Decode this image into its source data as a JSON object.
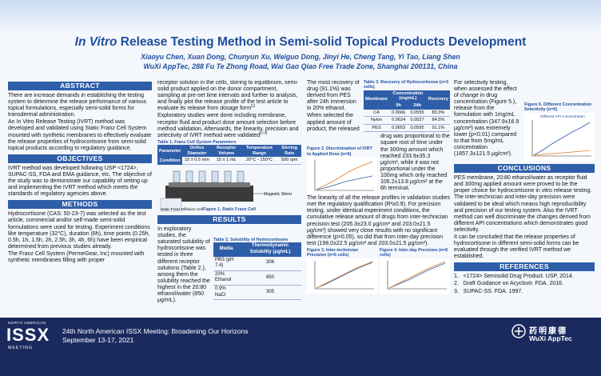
{
  "header": {
    "title_italic": "In Vitro",
    "title": "Release Testing Method in Semi-solid Topical Products Development",
    "authors": "Xiaoyu Chen, Xuan Dong, Chunyun Xu, Weiguo Dong, Jinyi He, Cheng Tang, Yi Tao, Liang Shen",
    "affiliation": "WuXi AppTec, 288 Fu Te Zhong Road, Wai Gao Qiao Free Trade Zone, Shanghai 200131, China"
  },
  "abstract": {
    "heading": "ABSTRACT",
    "paragraphs": [
      "There are increase demands in establishing the testing system to determine the release performance of various topical formulations, especially semi-solid forms for transdermal administration.",
      "An In Vitro Release Testing (IVRT) method was developed and validated using Static Franz Cell System mounted with synthetic membranes to effectively evaluate the release properties of hydrocortisone from semi-solid topical products according to regulatory guidance."
    ]
  },
  "objectives": {
    "heading": "OBJECTIVES",
    "paragraphs": [
      "IVRT method was developed following USP <1724>, SUPAC-SS, FDA and EMA guidance, etc. The objective of the study was to demonstrate our capability of setting up and implementing the IVRT method which meets the standards of regulatory agencies above."
    ]
  },
  "methods": {
    "heading": "METHODS",
    "paragraphs": [
      {
        "text": "Hydrocortisone (CAS: 50-23-7) was selected as the test article, commercial and/or self-made semi-solid formulations were used for testing. Experiment conditions like temperature (32°C), duration (6h), time points (0.25h, 0.5h, 1h, 1.5h, 2h, 2.5h, 3h, 4h, 6h) have been empirical determined from previous studies already."
      },
      {
        "parts": [
          "The Franz Cell System (PermeGear, Inc) mounted with synthetic membranes filling with proper",
          "receptor solution in the cells, stirring to equilibrium, semi-solid product applied on the donor compartment, sampling at pre-set time intervals and further to analysis, and finally plot the release profile of the test article to evaluate its release from dosage form"
        ],
        "cite": "[1]"
      },
      {
        "text": "Exploratory studies were done including membrane, receptor fluid and product dose amount selection before method validation. Afterwards, the linearity, precision and selectivity of IVRT method were validated",
        "cite": "[2-3]"
      }
    ]
  },
  "table1": {
    "caption": "Table 1. Franz Cell System Parameters",
    "headers": [
      "Parameter",
      "Orifice Diameter",
      "Receptor Volume",
      "Temperature Range",
      "Stirring Rate"
    ],
    "rows": [
      [
        "Condition",
        "15 ± 0.5 mm",
        "15 ± 1 mL",
        "20°C - 150°C",
        "500 rpm"
      ]
    ]
  },
  "figure1": {
    "labels": [
      "Magnetic Stirrer",
      "Static Franz Diffusion Cell"
    ],
    "caption": "Figure 1. Static Franz Cell"
  },
  "results": {
    "heading": "RESULTS",
    "paragraphs": [
      "In exploratory studies, the saturated solubility of hydrocortisone was tested in three different receptor solutions (Table 2.), among them the solubility reached the highest in the 20:80 ethanol/water (850 μg/mL).",
      "The most recovery of drug (91.1%) was derived from PES after 24h immersion in 20% ethanol.",
      "When selected the applied amount of product, the released drug was proportional to the square root of time under the 300mg amount which reached 233.9±35.3 μg/cm², while it was not proportional under the 100mg which only reached 106.2±13.8 μg/cm² at the 6h terminal.",
      "The linearity of all the release profiles in validation studies met the regulatory qualification (R²≥0.9). For precision testing, under identical experiment conditions, the cumulative release amount of drugs from inter-technician precision test (205.3±23.0 μg/cm² and 203.0±21.5 μg/cm²) showed very close results with no significant difference (p>0.05), so did that from inter-day precision test (198.0±22.5 μg/cm² and 203.0±21.5 μg/cm²).",
      "For selectivity testing, when assessed the effect of change in drug concentration (Figure 5.), release from the formulation with 1mg/mL concentration (347.9±16.9 μg/cm²) was extremely lower (p<0.01) compared to that from 5mg/mL concentration (1857.3±121.5 μg/cm²)."
    ]
  },
  "table2": {
    "caption": "Table 2. Solubility of Hydrocortisone",
    "headers": [
      "Media",
      "Thermodynamic Solubility (μg/mL)"
    ],
    "rows": [
      [
        "PBS (pH 7.4)",
        "306"
      ],
      [
        "20% Ethanol",
        "850"
      ],
      [
        "0.9% NaCl",
        "305"
      ]
    ]
  },
  "table3": {
    "caption": "Table 3. Recovery of Hydrocortisone (n=3 cells)",
    "headers": [
      "Membrane",
      "Concentration (mg/mL)",
      "Recovery"
    ],
    "subheaders": [
      "0h",
      "24h"
    ],
    "rows": [
      [
        "CA",
        "0.0666",
        "0.0555",
        "83.3%"
      ],
      [
        "Nylon",
        "0.0624",
        "0.0527",
        "84.5%"
      ],
      [
        "PES",
        "0.0653",
        "0.0595",
        "91.1%"
      ]
    ]
  },
  "figure2": {
    "caption": "Figure 2. Discrimination of IVRT to Applied Dose (n=6)"
  },
  "figure3": {
    "caption": "Figure 3. Inter-technician Precision (n=6 cells)"
  },
  "figure4": {
    "caption": "Figure 4. Inter-day Precision (n=6 cells)"
  },
  "figure5": {
    "caption": "Figure 5. Different Concentration Selectivity (n=6)",
    "subtitle": "Different API Concentration"
  },
  "conclusions": {
    "heading": "CONCLUSIONS",
    "paragraphs": [
      "PES membrane, 20:80 ethanol/water as receptor fluid and 300mg applied amount were proved to be the proper choice for hydrocortisone in vitro release testing. The inter-technician and inter-day precision were validated to be ideal which means high reproducibility and precision of our testing system. Also the IVRT method can well discriminate the changes derived from different API concentrations which demonstrates good selectivity.",
      "It can be concluded that the release properties of hydrocortisone in different semi-solid forms can be evaluated through the verified IVRT method we established."
    ]
  },
  "references": {
    "heading": "REFERENCES",
    "items": [
      "1.   <1724> Semisolid Drug Product. USP. 2014.",
      "2.   Draft Guidance on Acyclovir. FDA. 2016.",
      "3.   SUPAC-SS. FDA. 1997."
    ]
  },
  "footer": {
    "logo_top": "NORTH AMERICAN",
    "logo": "ISSX",
    "logo_bottom": "MEETING",
    "meeting": "24th North American ISSX Meeting: Broadening Our Horizons",
    "dates": "September 13-17, 2021",
    "company_cn": "药明康德",
    "company": "WuXi AppTec"
  }
}
